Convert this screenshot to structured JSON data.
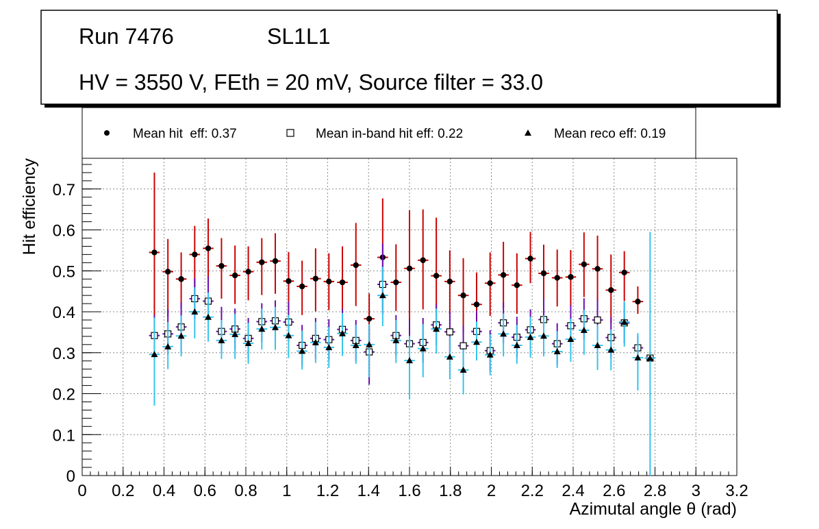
{
  "chart_data": {
    "type": "scatter",
    "title_lines": [
      "Run 7476",
      "SL1L1",
      "HV = 3550 V, FEth = 20 mV, Source filter = 33.0"
    ],
    "xlabel": "Azimutal angle θ (rad)",
    "ylabel": "Hit efficiency",
    "xlim": [
      0,
      3.2
    ],
    "ylim": [
      0,
      0.775
    ],
    "x_ticks": [
      0,
      0.2,
      0.4,
      0.6,
      0.8,
      1,
      1.2,
      1.4,
      1.6,
      1.8,
      2,
      2.2,
      2.4,
      2.6,
      2.8,
      3,
      3.2
    ],
    "x_tick_labels": [
      "0",
      "0.2",
      "0.4",
      "0.6",
      "0.8",
      "1",
      "1.2",
      "1.4",
      "1.6",
      "1.8",
      "2",
      "2.2",
      "2.4",
      "2.6",
      "2.8",
      "3",
      "3.2"
    ],
    "y_ticks": [
      0,
      0.1,
      0.2,
      0.3,
      0.4,
      0.5,
      0.6,
      0.7
    ],
    "y_tick_labels": [
      "0",
      "0.1",
      "0.2",
      "0.3",
      "0.4",
      "0.5",
      "0.6",
      "0.7"
    ],
    "grid": true,
    "x_halfwidth": 0.0261,
    "legend_position": "top",
    "x": [
      0.353,
      0.419,
      0.484,
      0.55,
      0.616,
      0.681,
      0.747,
      0.812,
      0.878,
      0.944,
      1.009,
      1.075,
      1.141,
      1.206,
      1.272,
      1.338,
      1.403,
      1.469,
      1.534,
      1.6,
      1.666,
      1.731,
      1.797,
      1.863,
      1.928,
      1.994,
      2.059,
      2.125,
      2.191,
      2.256,
      2.322,
      2.388,
      2.453,
      2.519,
      2.585,
      2.65,
      2.716,
      2.776
    ],
    "series": [
      {
        "name": "Mean hit  eff: 0.37",
        "marker": "circle",
        "marker_color": "#000000",
        "error_color": "#cc0000",
        "values": [
          0.545,
          0.498,
          0.48,
          0.54,
          0.555,
          0.512,
          0.489,
          0.498,
          0.521,
          0.524,
          0.475,
          0.462,
          0.481,
          0.474,
          0.472,
          0.514,
          0.383,
          0.533,
          0.472,
          0.506,
          0.526,
          0.488,
          0.474,
          0.44,
          0.418,
          0.47,
          0.49,
          0.465,
          0.53,
          0.494,
          0.483,
          0.485,
          0.516,
          0.505,
          0.453,
          0.496,
          0.425,
          0.287
        ],
        "err_low": [
          0.18,
          0.11,
          0.07,
          0.1,
          0.09,
          0.08,
          0.07,
          0.07,
          0.08,
          0.08,
          0.07,
          0.07,
          0.08,
          0.07,
          0.07,
          0.1,
          0.06,
          0.14,
          0.07,
          0.13,
          0.12,
          0.08,
          0.08,
          0.09,
          0.05,
          0.08,
          0.08,
          0.07,
          0.06,
          0.07,
          0.07,
          0.07,
          0.08,
          0.08,
          0.08,
          0.07,
          0.03,
          0.005
        ],
        "err_high": [
          0.195,
          0.08,
          0.065,
          0.07,
          0.073,
          0.068,
          0.073,
          0.062,
          0.059,
          0.068,
          0.071,
          0.063,
          0.074,
          0.069,
          0.088,
          0.103,
          0.062,
          0.144,
          0.093,
          0.142,
          0.124,
          0.142,
          0.076,
          0.091,
          0.078,
          0.075,
          0.081,
          0.078,
          0.065,
          0.07,
          0.069,
          0.066,
          0.078,
          0.081,
          0.087,
          0.052,
          0.037,
          0.005
        ]
      },
      {
        "name": "Mean in-band hit eff: 0.22",
        "marker": "open-square",
        "marker_color": "#000000",
        "error_color": "#6a0dad",
        "values": [
          0.342,
          0.346,
          0.363,
          0.432,
          0.426,
          0.352,
          0.358,
          0.335,
          0.376,
          0.378,
          0.375,
          0.318,
          0.335,
          0.332,
          0.357,
          0.33,
          0.302,
          0.467,
          0.342,
          0.322,
          0.325,
          0.368,
          0.351,
          0.317,
          0.352,
          0.305,
          0.373,
          0.338,
          0.356,
          0.381,
          0.322,
          0.366,
          0.383,
          0.38,
          0.337,
          0.373,
          0.312,
          0.287
        ],
        "err_low": [
          0.05,
          0.05,
          0.06,
          0.05,
          0.05,
          0.05,
          0.05,
          0.05,
          0.05,
          0.05,
          0.05,
          0.05,
          0.05,
          0.05,
          0.05,
          0.05,
          0.08,
          0.06,
          0.05,
          0.05,
          0.05,
          0.05,
          0.05,
          0.05,
          0.05,
          0.05,
          0.05,
          0.05,
          0.05,
          0.05,
          0.05,
          0.05,
          0.05,
          0.05,
          0.05,
          0.05,
          0.03,
          0.005
        ],
        "err_high": [
          0.05,
          0.06,
          0.06,
          0.05,
          0.06,
          0.06,
          0.05,
          0.05,
          0.045,
          0.05,
          0.05,
          0.05,
          0.05,
          0.05,
          0.05,
          0.05,
          0.06,
          0.1,
          0.05,
          0.06,
          0.06,
          0.05,
          0.05,
          0.05,
          0.05,
          0.05,
          0.05,
          0.05,
          0.05,
          0.05,
          0.05,
          0.05,
          0.05,
          0.05,
          0.05,
          0.05,
          0.03,
          0.005
        ]
      },
      {
        "name": "Mean reco eff: 0.19",
        "marker": "triangle",
        "marker_color": "#000000",
        "error_color": "#33c4ee",
        "values": [
          0.296,
          0.315,
          0.341,
          0.4,
          0.387,
          0.33,
          0.345,
          0.323,
          0.358,
          0.362,
          0.342,
          0.304,
          0.325,
          0.313,
          0.347,
          0.318,
          0.32,
          0.44,
          0.33,
          0.281,
          0.31,
          0.358,
          0.29,
          0.258,
          0.326,
          0.295,
          0.346,
          0.318,
          0.338,
          0.341,
          0.303,
          0.333,
          0.355,
          0.318,
          0.307,
          0.375,
          0.288,
          0.287
        ],
        "err_low": [
          0.125,
          0.055,
          0.05,
          0.065,
          0.06,
          0.045,
          0.06,
          0.05,
          0.05,
          0.055,
          0.055,
          0.045,
          0.05,
          0.05,
          0.055,
          0.045,
          0.08,
          0.075,
          0.055,
          0.095,
          0.07,
          0.06,
          0.055,
          0.06,
          0.045,
          0.05,
          0.055,
          0.045,
          0.05,
          0.05,
          0.04,
          0.055,
          0.06,
          0.06,
          0.05,
          0.06,
          0.08,
          0.287
        ],
        "err_high": [
          0.09,
          0.06,
          0.05,
          0.06,
          0.06,
          0.05,
          0.05,
          0.05,
          0.05,
          0.05,
          0.05,
          0.05,
          0.05,
          0.05,
          0.05,
          0.05,
          0.05,
          0.07,
          0.05,
          0.06,
          0.06,
          0.05,
          0.05,
          0.05,
          0.05,
          0.05,
          0.05,
          0.05,
          0.05,
          0.05,
          0.05,
          0.05,
          0.05,
          0.05,
          0.05,
          0.05,
          0.06,
          0.308
        ]
      }
    ]
  }
}
